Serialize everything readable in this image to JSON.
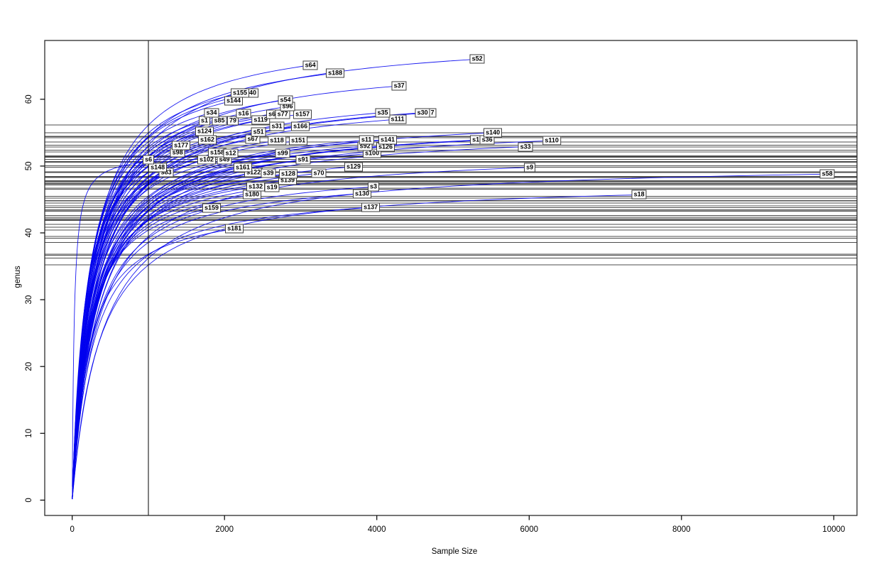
{
  "chart_data": {
    "type": "line",
    "title": "",
    "xlabel": "Sample Size",
    "ylabel": "genus",
    "x_ticks": [
      0,
      2000,
      4000,
      6000,
      8000,
      10000
    ],
    "y_ticks": [
      0,
      10,
      20,
      30,
      40,
      50,
      60
    ],
    "xlim": [
      -361,
      10305
    ],
    "ylim": [
      -2.3,
      68.8
    ],
    "grid": "off",
    "legend": "none",
    "vline_x": 1000,
    "curve_color": "#0000EE",
    "hline_color": "#4d4d4d",
    "axis_color": "#000000",
    "note_curve_shape": "rarefaction curves rising steeply from (1,1) and saturating at each sample's endpoint; one horizontal reference line per sample at its richness near x=1000; vertical reference line at x=1000",
    "series": [
      {
        "label": "s181",
        "x": 2129,
        "y": 40.6
      },
      {
        "label": "s159",
        "x": 1830,
        "y": 43.7
      },
      {
        "label": "s137",
        "x": 3919,
        "y": 43.8
      },
      {
        "label": "s180",
        "x": 2362,
        "y": 45.7
      },
      {
        "label": "s130",
        "x": 3807,
        "y": 45.9
      },
      {
        "label": "s18",
        "x": 7444,
        "y": 45.7
      },
      {
        "label": "s132",
        "x": 2409,
        "y": 46.9
      },
      {
        "label": "s19",
        "x": 2623,
        "y": 46.8
      },
      {
        "label": "s3",
        "x": 3956,
        "y": 46.9
      },
      {
        "label": "s139",
        "x": 2828,
        "y": 47.9
      },
      {
        "label": "s122",
        "x": 2381,
        "y": 49.0
      },
      {
        "label": "s39",
        "x": 2576,
        "y": 48.9
      },
      {
        "label": "s128",
        "x": 2837,
        "y": 48.8
      },
      {
        "label": "s70",
        "x": 3238,
        "y": 48.9
      },
      {
        "label": "s83",
        "x": 1234,
        "y": 49.0
      },
      {
        "label": "s58",
        "x": 9914,
        "y": 48.8
      },
      {
        "label": "s148",
        "x": 1122,
        "y": 49.8
      },
      {
        "label": "s161",
        "x": 2240,
        "y": 49.8
      },
      {
        "label": "s129",
        "x": 3695,
        "y": 49.9
      },
      {
        "label": "s9",
        "x": 6008,
        "y": 49.8
      },
      {
        "label": "s6",
        "x": 1001,
        "y": 50.9
      },
      {
        "label": "s49",
        "x": 1998,
        "y": 50.9
      },
      {
        "label": "s102",
        "x": 1765,
        "y": 51.0
      },
      {
        "label": "s91",
        "x": 3033,
        "y": 50.9
      },
      {
        "label": "s98",
        "x": 1383,
        "y": 52.0
      },
      {
        "label": "s158",
        "x": 1905,
        "y": 52.0
      },
      {
        "label": "s12",
        "x": 2082,
        "y": 51.9
      },
      {
        "label": "s99",
        "x": 2763,
        "y": 51.9
      },
      {
        "label": "s100",
        "x": 3938,
        "y": 51.9
      },
      {
        "label": "s177",
        "x": 1430,
        "y": 53.1
      },
      {
        "label": "s92",
        "x": 3845,
        "y": 53.0
      },
      {
        "label": "s126",
        "x": 4114,
        "y": 52.9
      },
      {
        "label": "s33",
        "x": 5952,
        "y": 52.9
      },
      {
        "label": "s162",
        "x": 1774,
        "y": 53.9
      },
      {
        "label": "s67",
        "x": 2371,
        "y": 54.0
      },
      {
        "label": "s118",
        "x": 2688,
        "y": 53.8
      },
      {
        "label": "s151",
        "x": 2968,
        "y": 53.8
      },
      {
        "label": "s11",
        "x": 3863,
        "y": 53.9
      },
      {
        "label": "s141",
        "x": 4142,
        "y": 53.9
      },
      {
        "label": "s1",
        "x": 5299,
        "y": 53.9
      },
      {
        "label": "s36",
        "x": 5448,
        "y": 53.9
      },
      {
        "label": "s110",
        "x": 6297,
        "y": 53.8
      },
      {
        "label": "s124",
        "x": 1737,
        "y": 55.2
      },
      {
        "label": "s51",
        "x": 2446,
        "y": 55.1
      },
      {
        "label": "s140",
        "x": 5523,
        "y": 55.0
      },
      {
        "label": "s31",
        "x": 2688,
        "y": 55.9
      },
      {
        "label": "s166",
        "x": 2996,
        "y": 55.9
      },
      {
        "label": "s1",
        "x": 1737,
        "y": 56.8
      },
      {
        "label": "79",
        "x": 2110,
        "y": 56.8
      },
      {
        "label": "s85",
        "x": 1933,
        "y": 56.8
      },
      {
        "label": "s119",
        "x": 2474,
        "y": 56.9
      },
      {
        "label": "s111",
        "x": 4273,
        "y": 57.0
      },
      {
        "label": "s34",
        "x": 1830,
        "y": 58.0
      },
      {
        "label": "s16",
        "x": 2250,
        "y": 57.9
      },
      {
        "label": "s6",
        "x": 2623,
        "y": 57.8
      },
      {
        "label": "s77",
        "x": 2763,
        "y": 57.8
      },
      {
        "label": "s157",
        "x": 3024,
        "y": 57.8
      },
      {
        "label": "s35",
        "x": 4077,
        "y": 58.0
      },
      {
        "label": "7",
        "x": 4730,
        "y": 58.0
      },
      {
        "label": "s30",
        "x": 4600,
        "y": 58.0
      },
      {
        "label": "s96",
        "x": 2828,
        "y": 58.9
      },
      {
        "label": "s144",
        "x": 2119,
        "y": 59.8
      },
      {
        "label": "s54",
        "x": 2800,
        "y": 59.9
      },
      {
        "label": "40",
        "x": 2371,
        "y": 60.9
      },
      {
        "label": "s155",
        "x": 2203,
        "y": 60.9
      },
      {
        "label": "s37",
        "x": 4292,
        "y": 62.0
      },
      {
        "label": "s188",
        "x": 3453,
        "y": 63.9
      },
      {
        "label": "s64",
        "x": 3127,
        "y": 65.1
      },
      {
        "label": "s52",
        "x": 5318,
        "y": 66.0
      }
    ]
  }
}
